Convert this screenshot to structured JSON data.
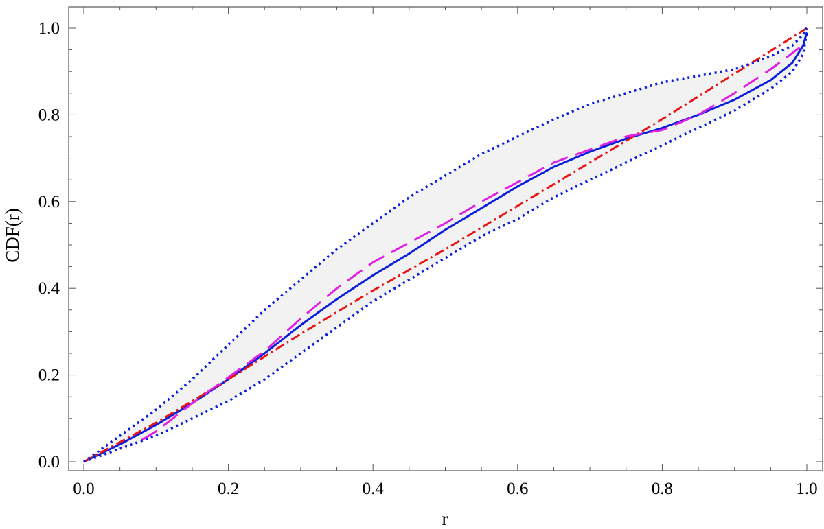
{
  "chart_data": {
    "type": "line",
    "title": "",
    "xlabel": "r",
    "ylabel": "CDF(r)",
    "xlim": [
      0.0,
      1.0
    ],
    "ylim": [
      0.0,
      1.0
    ],
    "xticks": [
      "0.0",
      "0.2",
      "0.4",
      "0.6",
      "0.8",
      "1.0"
    ],
    "yticks": [
      "0.0",
      "0.2",
      "0.4",
      "0.6",
      "0.8",
      "1.0"
    ],
    "grid": false,
    "legend": "none",
    "band": {
      "fill": "#f2f2f2",
      "x": [
        0.0,
        0.05,
        0.1,
        0.15,
        0.2,
        0.25,
        0.3,
        0.35,
        0.4,
        0.45,
        0.5,
        0.55,
        0.6,
        0.65,
        0.7,
        0.75,
        0.8,
        0.85,
        0.9,
        0.95,
        0.98,
        0.995,
        1.0
      ],
      "upper": [
        0.0,
        0.06,
        0.12,
        0.19,
        0.27,
        0.35,
        0.42,
        0.49,
        0.55,
        0.61,
        0.66,
        0.71,
        0.75,
        0.79,
        0.825,
        0.85,
        0.875,
        0.89,
        0.905,
        0.935,
        0.96,
        0.985,
        1.0
      ],
      "lower": [
        0.0,
        0.03,
        0.06,
        0.1,
        0.14,
        0.19,
        0.25,
        0.31,
        0.37,
        0.42,
        0.47,
        0.52,
        0.56,
        0.61,
        0.65,
        0.69,
        0.73,
        0.77,
        0.81,
        0.86,
        0.9,
        0.94,
        0.99
      ]
    },
    "series": [
      {
        "color": "#0a1edc",
        "dash": "solid",
        "x": [
          0.0,
          0.05,
          0.1,
          0.15,
          0.2,
          0.25,
          0.3,
          0.35,
          0.4,
          0.45,
          0.5,
          0.55,
          0.6,
          0.65,
          0.7,
          0.75,
          0.8,
          0.85,
          0.9,
          0.95,
          0.98,
          0.995,
          1.0
        ],
        "y": [
          0.0,
          0.04,
          0.085,
          0.135,
          0.19,
          0.25,
          0.315,
          0.375,
          0.43,
          0.48,
          0.535,
          0.585,
          0.635,
          0.68,
          0.715,
          0.745,
          0.77,
          0.8,
          0.835,
          0.88,
          0.92,
          0.96,
          0.99
        ]
      },
      {
        "color": "#e81414",
        "dash": "dashdot",
        "x": [
          0.0,
          0.1,
          0.2,
          0.3,
          0.4,
          0.5,
          0.6,
          0.7,
          0.8,
          0.9,
          1.0
        ],
        "y": [
          0.0,
          0.09,
          0.19,
          0.295,
          0.395,
          0.49,
          0.59,
          0.69,
          0.79,
          0.895,
          1.0
        ]
      },
      {
        "color": "#e020e0",
        "dash": "longdash",
        "x": [
          0.08,
          0.1,
          0.15,
          0.2,
          0.25,
          0.3,
          0.35,
          0.4,
          0.45,
          0.5,
          0.55,
          0.6,
          0.65,
          0.7,
          0.75,
          0.8,
          0.85,
          0.9,
          0.95,
          0.99
        ],
        "y": [
          0.05,
          0.07,
          0.135,
          0.195,
          0.255,
          0.33,
          0.4,
          0.46,
          0.505,
          0.55,
          0.6,
          0.645,
          0.69,
          0.72,
          0.75,
          0.765,
          0.8,
          0.85,
          0.905,
          0.955
        ]
      },
      {
        "color": "#0a1edc",
        "dash": "dotted",
        "x": [
          0.0,
          0.05,
          0.1,
          0.15,
          0.2,
          0.25,
          0.3,
          0.35,
          0.4,
          0.45,
          0.5,
          0.55,
          0.6,
          0.65,
          0.7,
          0.75,
          0.8,
          0.85,
          0.9,
          0.95,
          0.98,
          0.995,
          1.0
        ],
        "y": [
          0.0,
          0.06,
          0.12,
          0.19,
          0.27,
          0.35,
          0.42,
          0.49,
          0.55,
          0.61,
          0.66,
          0.71,
          0.75,
          0.79,
          0.825,
          0.85,
          0.875,
          0.89,
          0.905,
          0.935,
          0.96,
          0.985,
          1.0
        ]
      },
      {
        "color": "#0a1edc",
        "dash": "dotted",
        "x": [
          0.0,
          0.05,
          0.1,
          0.15,
          0.2,
          0.25,
          0.3,
          0.35,
          0.4,
          0.45,
          0.5,
          0.55,
          0.6,
          0.65,
          0.7,
          0.75,
          0.8,
          0.85,
          0.9,
          0.95,
          0.98,
          0.995,
          1.0
        ],
        "y": [
          0.0,
          0.03,
          0.06,
          0.1,
          0.14,
          0.19,
          0.25,
          0.31,
          0.37,
          0.42,
          0.47,
          0.52,
          0.56,
          0.61,
          0.65,
          0.69,
          0.73,
          0.77,
          0.81,
          0.86,
          0.9,
          0.94,
          0.99
        ]
      }
    ]
  }
}
